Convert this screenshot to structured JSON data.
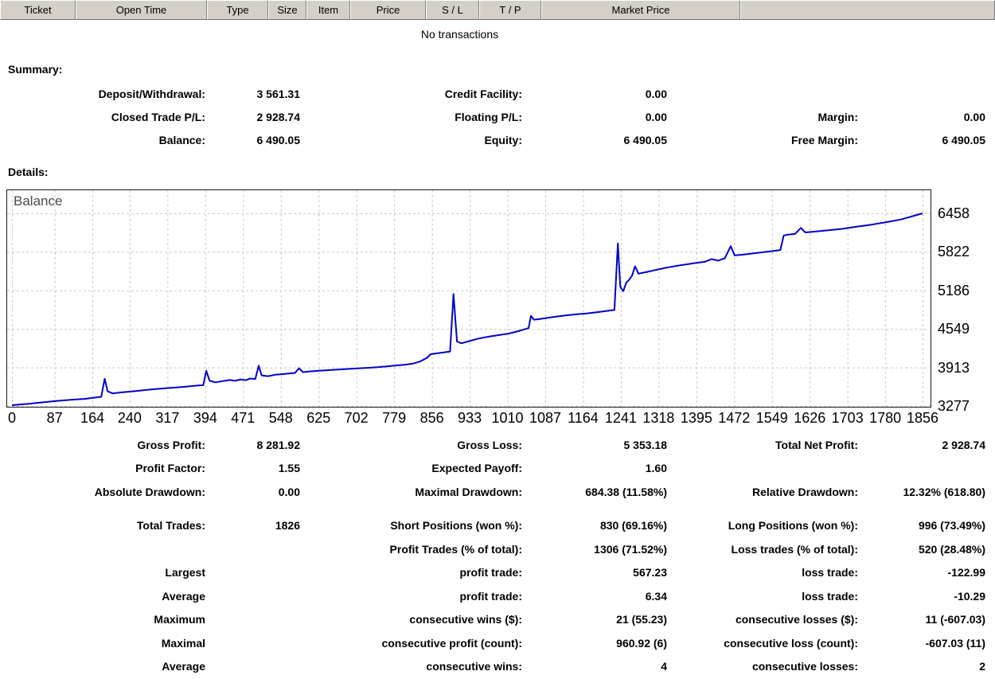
{
  "table": {
    "columns": [
      "Ticket",
      "Open Time",
      "Type",
      "Size",
      "Item",
      "Price",
      "S / L",
      "T / P",
      "Market Price",
      ""
    ],
    "empty_message": "No transactions"
  },
  "summary": {
    "heading": "Summary:",
    "rows": [
      [
        "Deposit/Withdrawal:",
        "3 561.31",
        "Credit Facility:",
        "0.00",
        "",
        ""
      ],
      [
        "Closed Trade P/L:",
        "2 928.74",
        "Floating P/L:",
        "0.00",
        "Margin:",
        "0.00"
      ],
      [
        "Balance:",
        "6 490.05",
        "Equity:",
        "6 490.05",
        "Free Margin:",
        "6 490.05"
      ]
    ]
  },
  "details": {
    "heading": "Details:",
    "chart_data": {
      "type": "line",
      "title": "Balance",
      "xlabel": "",
      "ylabel": "",
      "xlim": [
        0,
        1856
      ],
      "ylim": [
        3240,
        6850
      ],
      "grid": "dashed",
      "x_ticks": [
        0,
        87,
        164,
        240,
        317,
        394,
        471,
        548,
        625,
        702,
        779,
        856,
        933,
        1010,
        1087,
        1164,
        1241,
        1318,
        1395,
        1472,
        1549,
        1626,
        1703,
        1780,
        1856
      ],
      "y_ticks": [
        3277,
        3913,
        4549,
        5186,
        5822,
        6458
      ],
      "series": [
        {
          "name": "Balance",
          "color": "#0000C8",
          "points": [
            [
              0,
              3290
            ],
            [
              30,
              3310
            ],
            [
              60,
              3335
            ],
            [
              90,
              3360
            ],
            [
              120,
              3380
            ],
            [
              150,
              3395
            ],
            [
              168,
              3415
            ],
            [
              182,
              3428
            ],
            [
              189,
              3725
            ],
            [
              195,
              3520
            ],
            [
              205,
              3485
            ],
            [
              218,
              3498
            ],
            [
              235,
              3510
            ],
            [
              255,
              3525
            ],
            [
              275,
              3542
            ],
            [
              295,
              3558
            ],
            [
              315,
              3572
            ],
            [
              335,
              3583
            ],
            [
              355,
              3597
            ],
            [
              375,
              3612
            ],
            [
              390,
              3622
            ],
            [
              396,
              3858
            ],
            [
              403,
              3692
            ],
            [
              415,
              3668
            ],
            [
              430,
              3688
            ],
            [
              444,
              3706
            ],
            [
              455,
              3692
            ],
            [
              466,
              3716
            ],
            [
              476,
              3702
            ],
            [
              486,
              3730
            ],
            [
              496,
              3722
            ],
            [
              503,
              3942
            ],
            [
              509,
              3782
            ],
            [
              522,
              3768
            ],
            [
              536,
              3792
            ],
            [
              550,
              3802
            ],
            [
              563,
              3812
            ],
            [
              577,
              3822
            ],
            [
              585,
              3902
            ],
            [
              593,
              3836
            ],
            [
              607,
              3847
            ],
            [
              625,
              3858
            ],
            [
              645,
              3868
            ],
            [
              665,
              3878
            ],
            [
              685,
              3888
            ],
            [
              705,
              3897
            ],
            [
              725,
              3906
            ],
            [
              745,
              3917
            ],
            [
              765,
              3932
            ],
            [
              785,
              3947
            ],
            [
              805,
              3962
            ],
            [
              818,
              3977
            ],
            [
              832,
              4012
            ],
            [
              846,
              4072
            ],
            [
              853,
              4132
            ],
            [
              866,
              4146
            ],
            [
              880,
              4160
            ],
            [
              893,
              4176
            ],
            [
              900,
              5125
            ],
            [
              907,
              4342
            ],
            [
              916,
              4312
            ],
            [
              932,
              4348
            ],
            [
              952,
              4392
            ],
            [
              972,
              4422
            ],
            [
              992,
              4447
            ],
            [
              1012,
              4472
            ],
            [
              1032,
              4512
            ],
            [
              1046,
              4547
            ],
            [
              1053,
              4562
            ],
            [
              1058,
              4765
            ],
            [
              1064,
              4702
            ],
            [
              1076,
              4712
            ],
            [
              1092,
              4732
            ],
            [
              1112,
              4756
            ],
            [
              1132,
              4776
            ],
            [
              1152,
              4792
            ],
            [
              1172,
              4806
            ],
            [
              1192,
              4826
            ],
            [
              1212,
              4846
            ],
            [
              1228,
              4862
            ],
            [
              1235,
              5962
            ],
            [
              1240,
              5245
            ],
            [
              1246,
              5172
            ],
            [
              1252,
              5312
            ],
            [
              1258,
              5362
            ],
            [
              1264,
              5432
            ],
            [
              1270,
              5582
            ],
            [
              1277,
              5462
            ],
            [
              1292,
              5487
            ],
            [
              1312,
              5522
            ],
            [
              1332,
              5557
            ],
            [
              1352,
              5587
            ],
            [
              1372,
              5612
            ],
            [
              1392,
              5637
            ],
            [
              1412,
              5657
            ],
            [
              1426,
              5702
            ],
            [
              1439,
              5677
            ],
            [
              1453,
              5717
            ],
            [
              1465,
              5917
            ],
            [
              1473,
              5762
            ],
            [
              1492,
              5778
            ],
            [
              1512,
              5797
            ],
            [
              1532,
              5817
            ],
            [
              1552,
              5837
            ],
            [
              1566,
              5852
            ],
            [
              1573,
              6092
            ],
            [
              1582,
              6107
            ],
            [
              1596,
              6117
            ],
            [
              1608,
              6217
            ],
            [
              1617,
              6142
            ],
            [
              1637,
              6157
            ],
            [
              1662,
              6177
            ],
            [
              1692,
              6202
            ],
            [
              1722,
              6237
            ],
            [
              1752,
              6272
            ],
            [
              1782,
              6312
            ],
            [
              1812,
              6357
            ],
            [
              1836,
              6412
            ],
            [
              1856,
              6458
            ]
          ]
        }
      ]
    }
  },
  "stats": {
    "rows": [
      [
        "Gross Profit:",
        "8 281.92",
        "Gross Loss:",
        "5 353.18",
        "Total Net Profit:",
        "2 928.74"
      ],
      [
        "Profit Factor:",
        "1.55",
        "Expected Payoff:",
        "1.60",
        "",
        ""
      ],
      [
        "Absolute Drawdown:",
        "0.00",
        "Maximal Drawdown:",
        "684.38 (11.58%)",
        "Relative Drawdown:",
        "12.32% (618.80)"
      ],
      [
        "Total Trades:",
        "1826",
        "Short Positions (won %):",
        "830 (69.16%)",
        "Long Positions (won %):",
        "996 (73.49%)"
      ],
      [
        "",
        "",
        "Profit Trades (% of total):",
        "1306 (71.52%)",
        "Loss trades (% of total):",
        "520 (28.48%)"
      ],
      [
        "Largest",
        "",
        "profit trade:",
        "567.23",
        "loss trade:",
        "-122.99"
      ],
      [
        "Average",
        "",
        "profit trade:",
        "6.34",
        "loss trade:",
        "-10.29"
      ],
      [
        "Maximum",
        "",
        "consecutive wins ($):",
        "21 (55.23)",
        "consecutive losses ($):",
        "11 (-607.03)"
      ],
      [
        "Maximal",
        "",
        "consecutive profit (count):",
        "960.92 (6)",
        "consecutive loss (count):",
        "-607.03 (11)"
      ],
      [
        "Average",
        "",
        "consecutive wins:",
        "4",
        "consecutive losses:",
        "2"
      ]
    ]
  },
  "colors": {
    "balance_line": "#0000C8",
    "grid": "#c8c8c8",
    "header_bg": "#D4D0C8",
    "chart_border": "#1a1a1a"
  }
}
